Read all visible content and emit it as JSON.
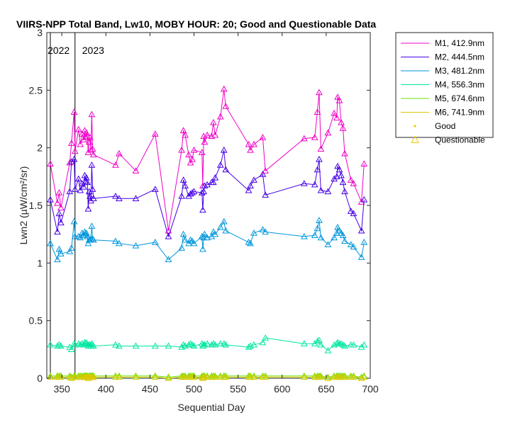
{
  "chart_data": {
    "type": "line",
    "title": "VIIRS-NPP Total Band, Lw10, MOBY HOUR: 20;  Good and Questionable Data",
    "xlabel": "Sequential Day",
    "ylabel": "Lwn2 (µW/cm²/sr)",
    "xlim": [
      333,
      700
    ],
    "ylim": [
      0,
      3
    ],
    "xticks": [
      "350",
      "400",
      "450",
      "500",
      "550",
      "600",
      "650",
      "700"
    ],
    "yticks": [
      "0",
      "0.5",
      "1",
      "1.5",
      "2",
      "2.5",
      "3"
    ],
    "grid": false,
    "legend_position": "outside-top-right",
    "year_markers": [
      {
        "x": 337,
        "label": "2022"
      },
      {
        "x": 365,
        "label": "2023"
      }
    ],
    "marker_legend": [
      {
        "label": "Good",
        "marker": "dot"
      },
      {
        "label": "Questionable",
        "marker": "triangle"
      }
    ],
    "x": [
      337,
      345,
      347,
      349,
      359,
      361,
      364,
      365,
      369,
      371,
      373,
      375,
      376,
      377,
      378,
      379,
      380,
      381,
      382,
      383,
      384,
      385,
      386,
      411,
      415,
      434,
      456,
      471,
      486,
      488,
      490,
      494,
      496,
      498,
      500,
      509,
      510,
      511,
      512,
      515,
      520,
      522,
      524,
      530,
      534,
      536,
      562,
      564,
      568,
      578,
      581,
      625,
      637,
      640,
      642,
      644,
      652,
      659,
      662,
      663,
      665,
      667,
      669,
      671,
      678,
      681,
      690,
      693
    ],
    "series": [
      {
        "name": "M1, 412.9nm",
        "color": "#f000c8",
        "values": [
          1.86,
          1.52,
          1.61,
          1.48,
          1.87,
          2.04,
          2.31,
          1.97,
          2.16,
          2.03,
          2.12,
          2.07,
          2.15,
          2.09,
          2.13,
          2.1,
          1.96,
          2.05,
          2.09,
          1.98,
          2.29,
          1.99,
          1.94,
          1.85,
          1.95,
          1.8,
          2.12,
          1.28,
          1.98,
          2.15,
          2.11,
          1.94,
          1.87,
          1.9,
          1.98,
          1.96,
          1.67,
          2.1,
          2.05,
          2.11,
          2.1,
          2.22,
          2.11,
          2.27,
          2.51,
          2.36,
          2.03,
          1.98,
          2.03,
          2.09,
          1.8,
          2.08,
          2.09,
          2.31,
          2.48,
          1.99,
          2.13,
          2.3,
          2.26,
          2.44,
          2.41,
          2.22,
          2.17,
          1.95,
          1.72,
          1.69,
          1.53,
          1.86
        ]
      },
      {
        "name": "M2, 444.5nm",
        "color": "#4600e6",
        "values": [
          1.55,
          1.27,
          1.43,
          1.35,
          1.62,
          1.88,
          1.9,
          1.64,
          1.73,
          1.63,
          1.69,
          1.66,
          1.76,
          1.71,
          1.74,
          1.7,
          1.47,
          1.62,
          1.58,
          1.54,
          1.85,
          1.64,
          1.56,
          1.58,
          1.56,
          1.56,
          1.64,
          1.23,
          1.58,
          1.72,
          1.67,
          1.58,
          1.6,
          1.61,
          1.62,
          1.61,
          1.46,
          1.62,
          1.67,
          1.68,
          1.7,
          1.7,
          1.74,
          1.85,
          1.98,
          1.81,
          1.63,
          1.67,
          1.72,
          1.77,
          1.59,
          1.69,
          1.68,
          1.81,
          1.9,
          1.63,
          1.62,
          1.73,
          1.75,
          1.84,
          1.81,
          1.76,
          1.7,
          1.62,
          1.45,
          1.43,
          1.28,
          1.55
        ]
      },
      {
        "name": "M3, 481.2nm",
        "color": "#0096dc",
        "values": [
          1.17,
          1.03,
          1.12,
          1.08,
          1.1,
          1.13,
          1.36,
          1.23,
          1.23,
          1.22,
          1.26,
          1.24,
          1.27,
          1.25,
          1.26,
          1.23,
          1.17,
          1.2,
          1.2,
          1.21,
          1.32,
          1.21,
          1.2,
          1.19,
          1.17,
          1.15,
          1.18,
          1.03,
          1.13,
          1.25,
          1.2,
          1.17,
          1.2,
          1.19,
          1.17,
          1.23,
          1.12,
          1.22,
          1.25,
          1.22,
          1.23,
          1.27,
          1.25,
          1.31,
          1.36,
          1.28,
          1.18,
          1.17,
          1.26,
          1.29,
          1.27,
          1.23,
          1.24,
          1.3,
          1.37,
          1.22,
          1.16,
          1.22,
          1.26,
          1.31,
          1.28,
          1.26,
          1.24,
          1.19,
          1.16,
          1.14,
          1.05,
          1.18
        ]
      },
      {
        "name": "M4, 556.3nm",
        "color": "#00e6a0",
        "values": [
          0.29,
          0.28,
          0.29,
          0.28,
          0.27,
          0.25,
          0.3,
          0.29,
          0.3,
          0.29,
          0.3,
          0.29,
          0.31,
          0.3,
          0.31,
          0.29,
          0.28,
          0.29,
          0.29,
          0.28,
          0.3,
          0.29,
          0.28,
          0.29,
          0.28,
          0.28,
          0.28,
          0.28,
          0.27,
          0.29,
          0.28,
          0.29,
          0.3,
          0.29,
          0.28,
          0.3,
          0.28,
          0.29,
          0.29,
          0.3,
          0.29,
          0.3,
          0.29,
          0.3,
          0.3,
          0.29,
          0.27,
          0.28,
          0.29,
          0.31,
          0.35,
          0.3,
          0.3,
          0.32,
          0.33,
          0.29,
          0.24,
          0.29,
          0.3,
          0.31,
          0.3,
          0.3,
          0.29,
          0.28,
          0.29,
          0.29,
          0.27,
          0.29
        ]
      },
      {
        "name": "M5, 674.6nm",
        "color": "#64e600",
        "values": [
          0.02,
          0.02,
          0.02,
          0.02,
          0.02,
          0.01,
          0.02,
          0.02,
          0.02,
          0.02,
          0.02,
          0.02,
          0.02,
          0.02,
          0.02,
          0.02,
          0.01,
          0.02,
          0.02,
          0.02,
          0.02,
          0.02,
          0.02,
          0.02,
          0.02,
          0.02,
          0.02,
          0.01,
          0.02,
          0.02,
          0.02,
          0.02,
          0.02,
          0.02,
          0.02,
          0.02,
          0.01,
          0.02,
          0.02,
          0.02,
          0.02,
          0.02,
          0.02,
          0.02,
          0.02,
          0.02,
          0.02,
          0.02,
          0.02,
          0.02,
          0.02,
          0.02,
          0.02,
          0.02,
          0.02,
          0.02,
          0.01,
          0.02,
          0.02,
          0.02,
          0.02,
          0.02,
          0.02,
          0.02,
          0.02,
          0.02,
          0.01,
          0.02
        ]
      },
      {
        "name": "M6, 741.9nm",
        "color": "#dcc800",
        "values": [
          0.01,
          0.01,
          0.01,
          0.01,
          0.01,
          0.0,
          0.01,
          0.01,
          0.01,
          0.01,
          0.01,
          0.01,
          0.01,
          0.01,
          0.01,
          0.01,
          0.0,
          0.01,
          0.01,
          0.01,
          0.01,
          0.01,
          0.01,
          0.01,
          0.01,
          0.01,
          0.01,
          0.0,
          0.01,
          0.01,
          0.01,
          0.01,
          0.01,
          0.01,
          0.01,
          0.01,
          0.0,
          0.01,
          0.01,
          0.01,
          0.01,
          0.01,
          0.01,
          0.01,
          0.01,
          0.01,
          0.01,
          0.01,
          0.01,
          0.01,
          0.01,
          0.01,
          0.01,
          0.01,
          0.01,
          0.01,
          0.0,
          0.01,
          0.01,
          0.01,
          0.01,
          0.01,
          0.01,
          0.01,
          0.01,
          0.01,
          0.0,
          0.01
        ]
      }
    ]
  },
  "legend_colors": {
    "good": "#f0c800",
    "questionable": "#f0c800",
    "axis": "#262626",
    "year_line": "#000000"
  }
}
